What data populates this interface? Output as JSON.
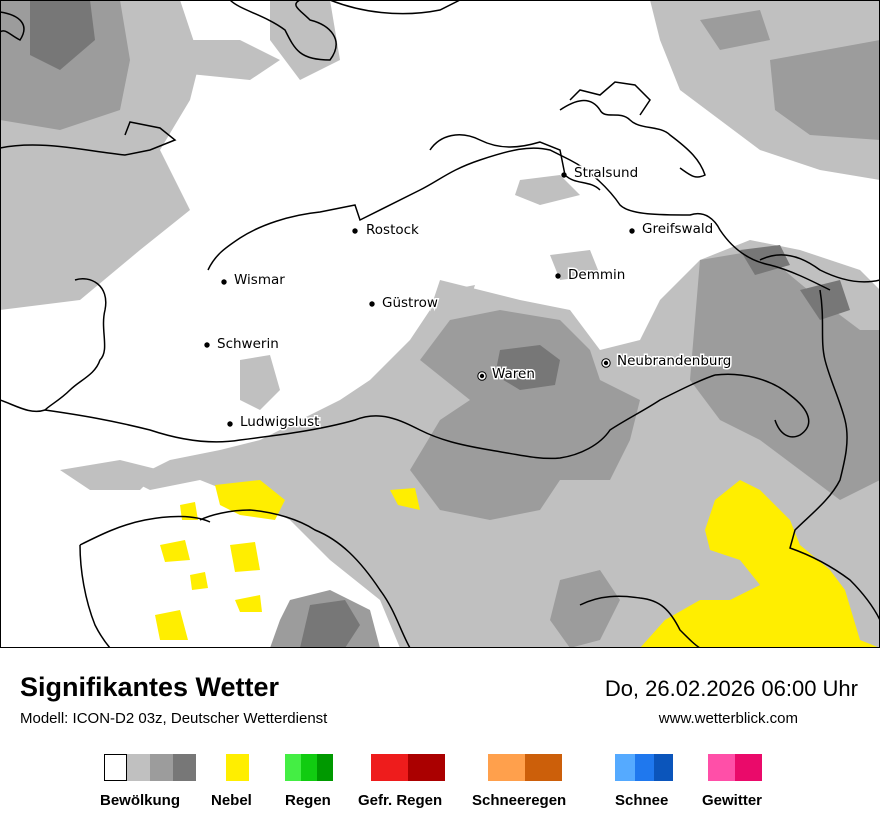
{
  "header": {
    "title": "Signifikantes Wetter",
    "model": "Modell: ICON-D2 03z, Deutscher Wetterdienst",
    "datetime": "Do, 26.02.2026 06:00 Uhr",
    "website": "www.wetterblick.com"
  },
  "cities": [
    {
      "name": "Stralsund",
      "marker": "dot"
    },
    {
      "name": "Rostock",
      "marker": "dot"
    },
    {
      "name": "Greifswald",
      "marker": "dot"
    },
    {
      "name": "Wismar",
      "marker": "dot"
    },
    {
      "name": "Demmin",
      "marker": "dot"
    },
    {
      "name": "Güstrow",
      "marker": "dot"
    },
    {
      "name": "Schwerin",
      "marker": "dot"
    },
    {
      "name": "Neubrandenburg",
      "marker": "ring"
    },
    {
      "name": "Waren",
      "marker": "ring"
    },
    {
      "name": "Ludwigslust",
      "marker": "dot"
    }
  ],
  "legend": [
    {
      "label": "Bewölkung",
      "colors": [
        "#ffffff",
        "#c0c0c0",
        "#9c9c9c",
        "#777777"
      ]
    },
    {
      "label": "Nebel",
      "colors": [
        "#ffee00"
      ]
    },
    {
      "label": "Regen",
      "colors": [
        "#44ee44",
        "#11cc11",
        "#009900"
      ]
    },
    {
      "label": "Gefr. Regen",
      "colors": [
        "#ee1c1c",
        "#aa0000"
      ]
    },
    {
      "label": "Schneeregen",
      "colors": [
        "#ffa04c",
        "#cc5f0a"
      ]
    },
    {
      "label": "Schnee",
      "colors": [
        "#55aaff",
        "#1f78ee",
        "#0b55bb"
      ]
    },
    {
      "label": "Gewitter",
      "colors": [
        "#ff4fa8",
        "#ea0a6a"
      ]
    }
  ],
  "colors": {
    "cloud_light": "#c0c0c0",
    "cloud_medium": "#9c9c9c",
    "cloud_dark": "#777777",
    "fog": "#ffee00"
  }
}
